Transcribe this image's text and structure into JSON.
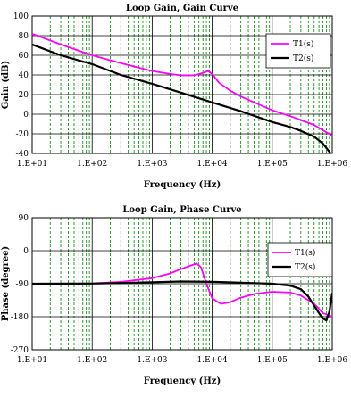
{
  "chart_data": [
    {
      "type": "line",
      "title": "Loop Gain, Gain Curve",
      "xlabel": "Frequency (Hz)",
      "ylabel": "Gain (dB)",
      "xscale": "log",
      "xlim": [
        10,
        1000000
      ],
      "ylim": [
        -40,
        100
      ],
      "xticks": [
        10,
        100,
        1000,
        10000,
        100000,
        1000000
      ],
      "xtick_labels": [
        "1.E+01",
        "1.E+02",
        "1.E+03",
        "1.E+04",
        "1.E+05",
        "1.E+06"
      ],
      "yticks": [
        -40,
        -20,
        0,
        20,
        40,
        60,
        80,
        100
      ],
      "ytick_labels": [
        "-40",
        "-20",
        "0",
        "20",
        "40",
        "60",
        "80",
        "100"
      ],
      "grid": true,
      "legend": "top-right",
      "series": [
        {
          "name": "T1(s)",
          "color": "#ff00ff",
          "x": [
            10,
            30,
            100,
            300,
            1000,
            2000,
            3000,
            5000,
            7000,
            8500,
            10000,
            13000,
            20000,
            30000,
            50000,
            100000,
            200000,
            300000,
            500000,
            1000000
          ],
          "y": [
            82,
            71,
            60,
            52,
            44,
            41,
            39.5,
            39.5,
            42,
            44,
            41,
            32,
            24,
            18,
            12,
            4,
            -2,
            -6,
            -11,
            -22
          ]
        },
        {
          "name": "T2(s)",
          "color": "#000000",
          "x": [
            10,
            30,
            100,
            300,
            1000,
            3000,
            10000,
            30000,
            100000,
            200000,
            300000,
            500000,
            700000,
            1000000
          ],
          "y": [
            71,
            60,
            51,
            40,
            31,
            22,
            12,
            3,
            -8,
            -13,
            -17,
            -23,
            -30,
            -42
          ]
        }
      ]
    },
    {
      "type": "line",
      "title": "Loop Gain, Phase Curve",
      "xlabel": "Frequency (Hz)",
      "ylabel": "Phase (degree)",
      "xscale": "log",
      "xlim": [
        10,
        1000000
      ],
      "ylim": [
        -270,
        90
      ],
      "xticks": [
        10,
        100,
        1000,
        10000,
        100000,
        1000000
      ],
      "xtick_labels": [
        "1.E+01",
        "1.E+02",
        "1.E+03",
        "1.E+04",
        "1.E+05",
        "1.E+06"
      ],
      "yticks": [
        -270,
        -180,
        -90,
        0,
        90
      ],
      "ytick_labels": [
        "-270",
        "-180",
        "-90",
        "0",
        "90"
      ],
      "grid": true,
      "legend": "top-right",
      "series": [
        {
          "name": "T1(s)",
          "color": "#ff00ff",
          "x": [
            10,
            100,
            300,
            1000,
            2000,
            3000,
            4500,
            5500,
            6500,
            8000,
            10000,
            14000,
            20000,
            30000,
            50000,
            100000,
            200000,
            300000,
            500000,
            700000,
            1000000
          ],
          "y": [
            -90,
            -89,
            -85,
            -75,
            -62,
            -50,
            -40,
            -35,
            -45,
            -90,
            -130,
            -145,
            -140,
            -128,
            -118,
            -112,
            -114,
            -122,
            -145,
            -170,
            -180
          ]
        },
        {
          "name": "T2(s)",
          "color": "#000000",
          "x": [
            10,
            100,
            300,
            1000,
            3000,
            10000,
            30000,
            100000,
            200000,
            300000,
            400000,
            500000,
            600000,
            700000,
            800000,
            900000,
            1000000
          ],
          "y": [
            -90,
            -89.5,
            -88,
            -86,
            -84,
            -85,
            -87,
            -90,
            -95,
            -105,
            -125,
            -150,
            -170,
            -185,
            -190,
            -165,
            -115
          ]
        }
      ]
    }
  ]
}
